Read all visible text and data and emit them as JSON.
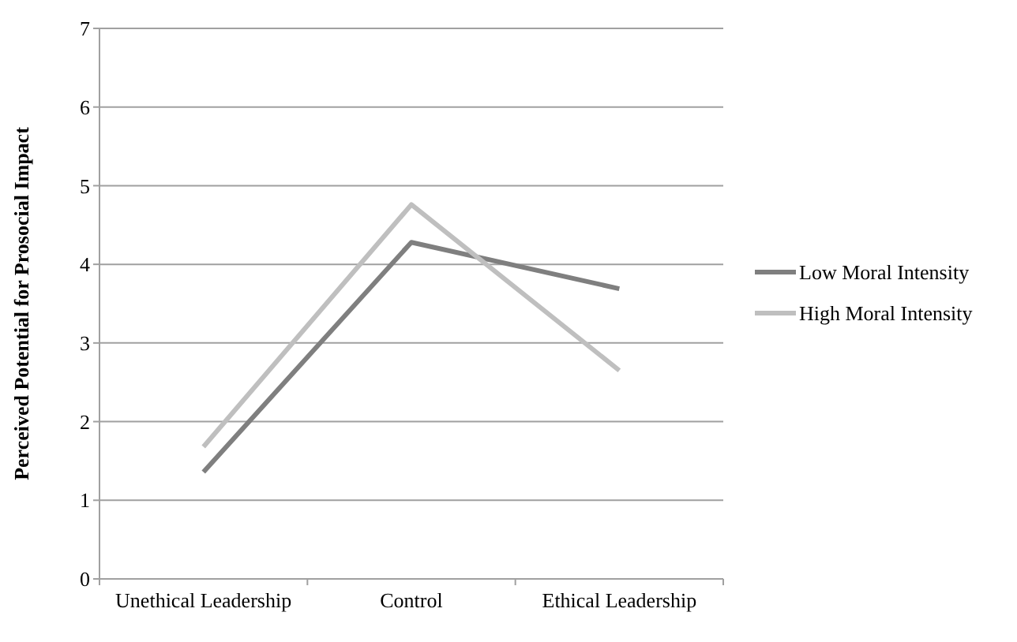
{
  "chart_data": {
    "type": "line",
    "ylabel": "Perceived Potential for Prosocial Impact",
    "categories": [
      "Unethical Leadership",
      "Control",
      "Ethical Leadership"
    ],
    "series": [
      {
        "name": "Low Moral Intensity",
        "color": "#7f7f7f",
        "values": [
          1.36,
          4.28,
          3.69
        ]
      },
      {
        "name": "High Moral Intensity",
        "color": "#bfbfbf",
        "values": [
          1.68,
          4.76,
          2.65
        ]
      }
    ],
    "ylim": [
      0,
      7
    ],
    "yticks": [
      0,
      1,
      2,
      3,
      4,
      5,
      6,
      7
    ],
    "grid": "y",
    "legend": "right",
    "marker": "none",
    "line_style": "solid"
  }
}
